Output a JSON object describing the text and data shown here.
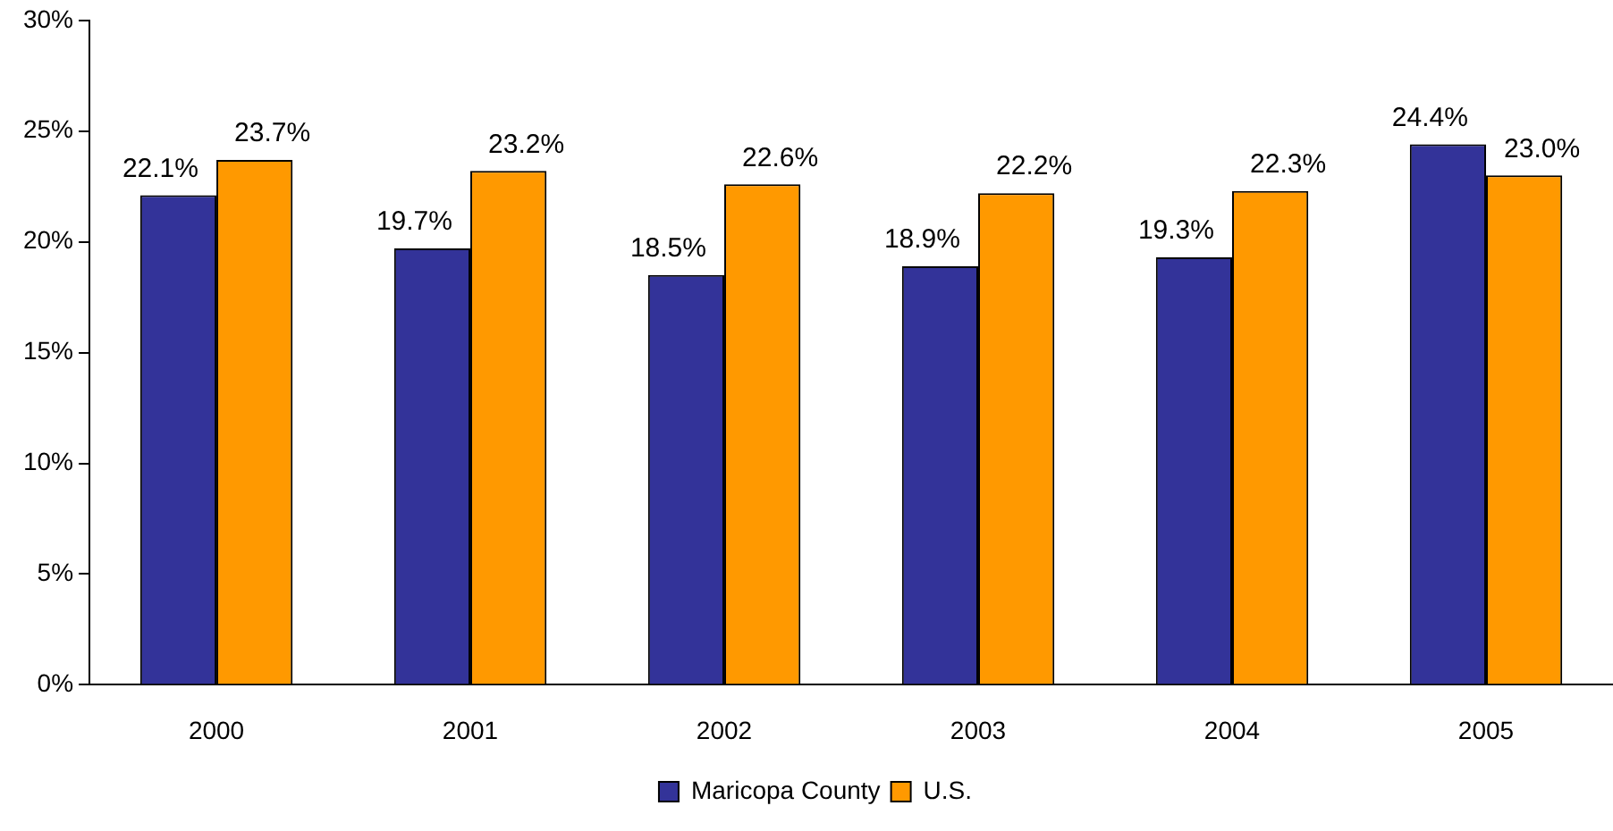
{
  "chart_data": {
    "type": "bar",
    "categories": [
      "2000",
      "2001",
      "2002",
      "2003",
      "2004",
      "2005"
    ],
    "series": [
      {
        "name": "Maricopa County",
        "color": "#333399",
        "values": [
          22.1,
          19.7,
          18.5,
          18.9,
          19.3,
          24.4
        ],
        "value_labels": [
          "22.1%",
          "19.7%",
          "18.5%",
          "18.9%",
          "19.3%",
          "24.4%"
        ]
      },
      {
        "name": "U.S.",
        "color": "#ff9900",
        "values": [
          23.7,
          23.2,
          22.6,
          22.2,
          22.3,
          23.0
        ],
        "value_labels": [
          "23.7%",
          "23.2%",
          "22.6%",
          "22.2%",
          "22.3%",
          "23.0%"
        ]
      }
    ],
    "ylim": [
      0,
      30
    ],
    "yticks": [
      {
        "value": 0,
        "label": "0%"
      },
      {
        "value": 5,
        "label": "5%"
      },
      {
        "value": 10,
        "label": "10%"
      },
      {
        "value": 15,
        "label": "15%"
      },
      {
        "value": 20,
        "label": "20%"
      },
      {
        "value": 25,
        "label": "25%"
      },
      {
        "value": 30,
        "label": "30%"
      }
    ],
    "grid": false,
    "legend": "bottom"
  }
}
